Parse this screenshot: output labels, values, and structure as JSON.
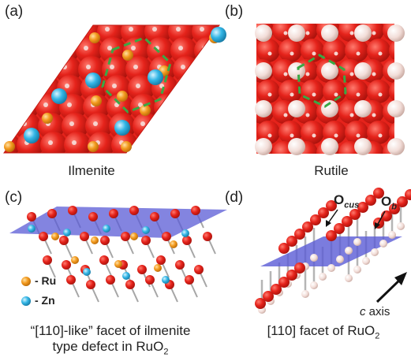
{
  "panels": {
    "a": {
      "letter": "(a)",
      "caption": "Ilmenite"
    },
    "b": {
      "letter": "(b)",
      "caption": "Rutile"
    },
    "c": {
      "letter": "(c)",
      "caption_line1": "“[110]-like” facet of ilmenite",
      "caption_line2_main": "type defect in RuO",
      "caption_line2_sub": "2"
    },
    "d": {
      "letter": "(d)",
      "caption_main": "[110] facet of RuO",
      "caption_sub": "2"
    }
  },
  "legend": {
    "ru_label": "- Ru",
    "zn_label": "- Zn"
  },
  "atom_labels": {
    "o_cus_main": "O",
    "o_cus_sub": "cus",
    "o_b_main": "O",
    "o_b_sub": "b"
  },
  "axis": {
    "c_italic": "c",
    "c_rest": " axis"
  },
  "colors": {
    "oxygen": "#e5231b",
    "ruthenium": "#f39a1e",
    "zinc": "#33b6e6",
    "rutile_metal": "#f2ddd8",
    "dashed_outline": "#3aa845",
    "facet_plane": "#5a5bd6"
  }
}
